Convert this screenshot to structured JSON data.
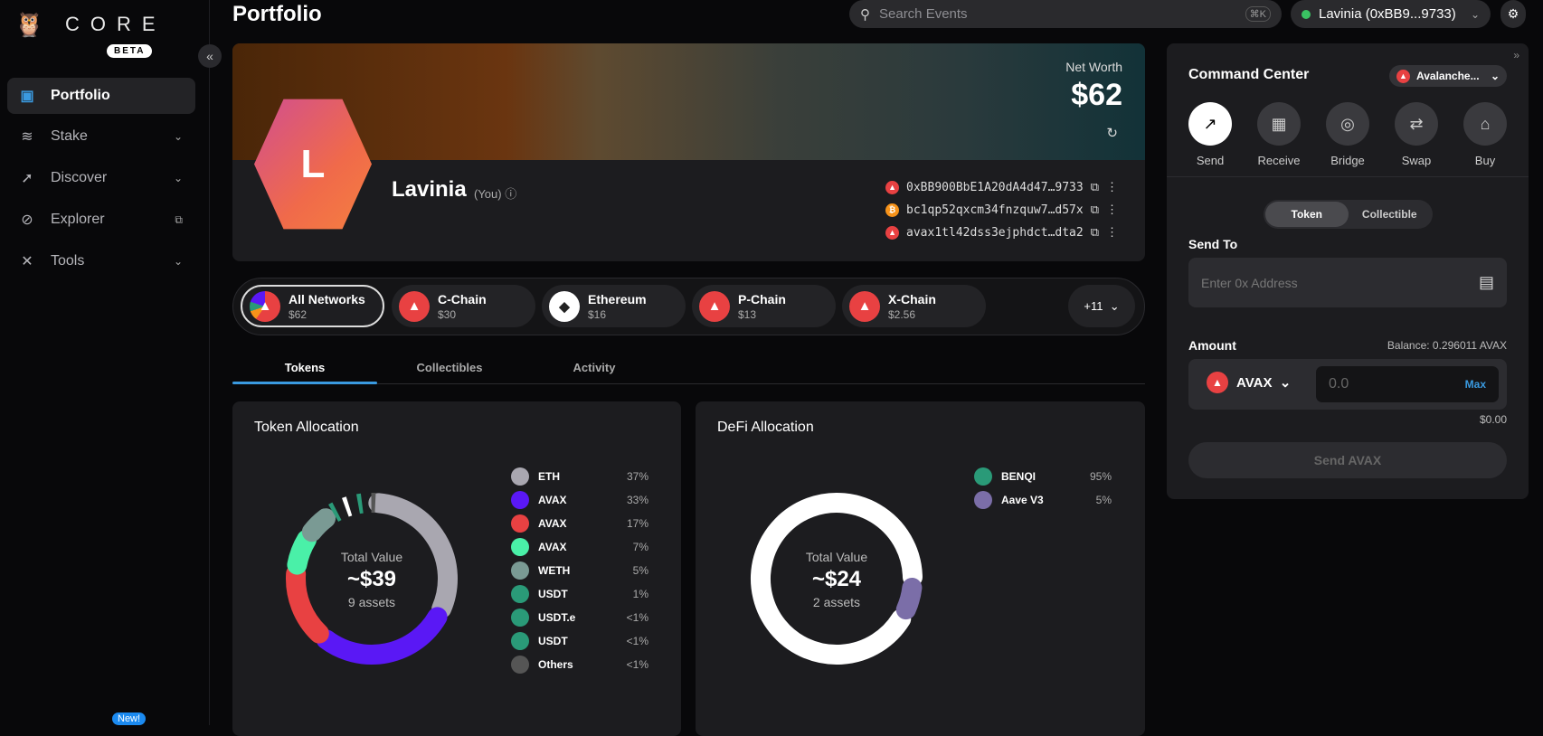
{
  "app": {
    "logo": "CORE",
    "beta": "BETA",
    "new_badge": "New!"
  },
  "sidebar": {
    "items": [
      {
        "label": "Portfolio",
        "icon": "wallet-icon",
        "active": true
      },
      {
        "label": "Stake",
        "icon": "layers-icon"
      },
      {
        "label": "Discover",
        "icon": "rocket-icon"
      },
      {
        "label": "Explorer",
        "icon": "compass-icon"
      },
      {
        "label": "Tools",
        "icon": "tools-icon"
      }
    ]
  },
  "header": {
    "title": "Portfolio",
    "search_placeholder": "Search Events",
    "shortcut": "⌘K",
    "account": "Lavinia (0xBB9...9733)",
    "account_status_color": "#3ac262"
  },
  "profile": {
    "initial": "L",
    "name": "Lavinia",
    "you": "(You)",
    "net_worth_label": "Net Worth",
    "net_worth": "$62",
    "addresses": [
      {
        "chain": "avalanche",
        "value": "0xBB900BbE1A20dA4d47…9733",
        "color": "#e84142"
      },
      {
        "chain": "bitcoin",
        "value": "bc1qp52qxcm34fnzquw7…d57x",
        "color": "#f7931a"
      },
      {
        "chain": "avalanche-x",
        "value": "avax1tl42dss3ejphdct…dta2",
        "color": "#e84142"
      }
    ]
  },
  "networks": {
    "items": [
      {
        "name": "All Networks",
        "value": "$62",
        "selected": true
      },
      {
        "name": "C-Chain",
        "value": "$30"
      },
      {
        "name": "Ethereum",
        "value": "$16"
      },
      {
        "name": "P-Chain",
        "value": "$13"
      },
      {
        "name": "X-Chain",
        "value": "$2.56"
      }
    ],
    "more": "+11"
  },
  "tabs": [
    {
      "label": "Tokens",
      "selected": true
    },
    {
      "label": "Collectibles"
    },
    {
      "label": "Activity"
    }
  ],
  "token_allocation": {
    "title": "Token Allocation",
    "center_label": "Total Value",
    "center_value": "~$39",
    "center_sub": "9 assets"
  },
  "defi_allocation": {
    "title": "DeFi Allocation",
    "center_label": "Total Value",
    "center_value": "~$24",
    "center_sub": "2 assets"
  },
  "chart_data": [
    {
      "type": "pie",
      "title": "Token Allocation",
      "categories": [
        "ETH",
        "AVAX",
        "AVAX",
        "AVAX",
        "WETH",
        "USDT",
        "USDT.e",
        "USDT",
        "Others"
      ],
      "labels": [
        "37%",
        "33%",
        "17%",
        "7%",
        "5%",
        "1%",
        "<1%",
        "<1%",
        "<1%"
      ],
      "values": [
        37,
        33,
        17,
        7,
        5,
        1,
        0.5,
        0.5,
        0.5
      ],
      "colors": [
        "#a9a7b0",
        "#5a18f5",
        "#e84142",
        "#4af0a8",
        "#7a9a94",
        "#2a9a78",
        "#ffffff",
        "#2a9a78",
        "#555555"
      ]
    },
    {
      "type": "pie",
      "title": "DeFi Allocation",
      "categories": [
        "BENQI",
        "Aave V3"
      ],
      "labels": [
        "95%",
        "5%"
      ],
      "values": [
        95,
        5
      ],
      "colors": [
        "#ffffff",
        "#7b6ea8"
      ]
    }
  ],
  "command_center": {
    "title": "Command Center",
    "network": "Avalanche...",
    "actions": [
      "Send",
      "Receive",
      "Bridge",
      "Swap",
      "Buy"
    ],
    "seg": [
      "Token",
      "Collectible"
    ],
    "send_to_label": "Send To",
    "address_placeholder": "Enter 0x Address",
    "amount_label": "Amount",
    "balance": "Balance: 0.296011 AVAX",
    "token": "AVAX",
    "amount_placeholder": "0.0",
    "max": "Max",
    "usd": "$0.00",
    "send_button": "Send AVAX",
    "accent": "#3a9ae0"
  }
}
